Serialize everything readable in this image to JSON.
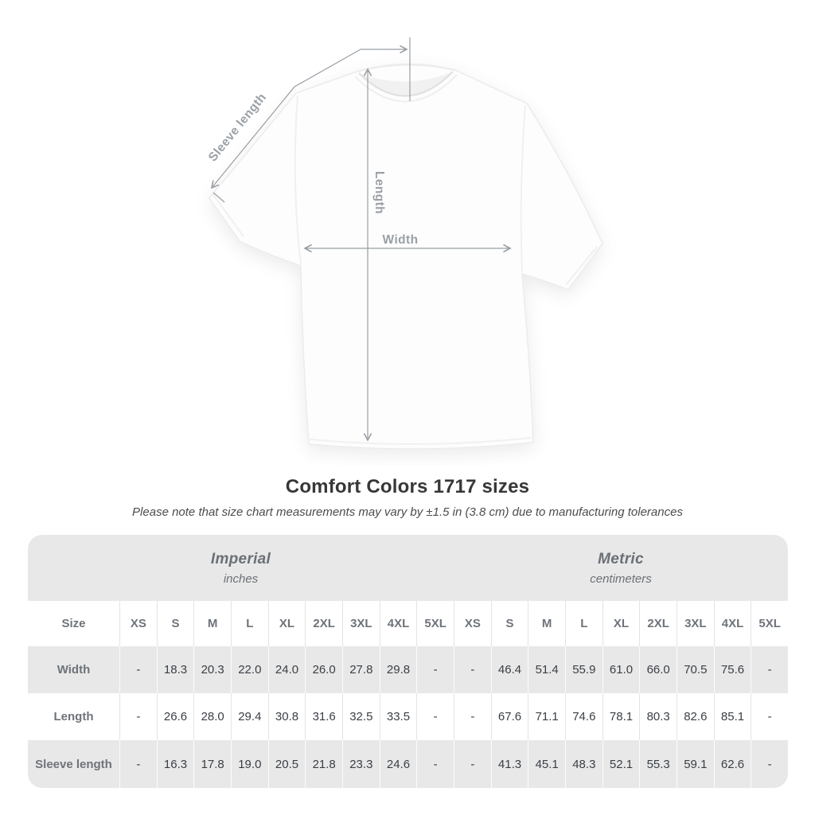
{
  "diagram": {
    "sleeve_label": "Sleeve length",
    "length_label": "Length",
    "width_label": "Width"
  },
  "heading": {
    "title": "Comfort Colors 1717 sizes",
    "note": "Please note that size chart measurements may vary by ±1.5 in (3.8 cm) due to manufacturing tolerances"
  },
  "table": {
    "size_header": "Size",
    "unit_groups": [
      {
        "name": "Imperial",
        "unit": "inches"
      },
      {
        "name": "Metric",
        "unit": "centimeters"
      }
    ],
    "sizes": [
      "XS",
      "S",
      "M",
      "L",
      "XL",
      "2XL",
      "3XL",
      "4XL",
      "5XL"
    ],
    "rows": [
      {
        "label": "Width",
        "imperial": [
          "-",
          "18.3",
          "20.3",
          "22.0",
          "24.0",
          "26.0",
          "27.8",
          "29.8",
          "-"
        ],
        "metric": [
          "-",
          "46.4",
          "51.4",
          "55.9",
          "61.0",
          "66.0",
          "70.5",
          "75.6",
          "-"
        ]
      },
      {
        "label": "Length",
        "imperial": [
          "-",
          "26.6",
          "28.0",
          "29.4",
          "30.8",
          "31.6",
          "32.5",
          "33.5",
          "-"
        ],
        "metric": [
          "-",
          "67.6",
          "71.1",
          "74.6",
          "78.1",
          "80.3",
          "82.6",
          "85.1",
          "-"
        ]
      },
      {
        "label": "Sleeve length",
        "imperial": [
          "-",
          "16.3",
          "17.8",
          "19.0",
          "20.5",
          "21.8",
          "23.3",
          "24.6",
          "-"
        ],
        "metric": [
          "-",
          "41.3",
          "45.1",
          "48.3",
          "52.1",
          "55.3",
          "59.1",
          "62.6",
          "-"
        ]
      }
    ]
  },
  "colors": {
    "stripe": "#e8e8e8",
    "annotation": "#9aa0a6",
    "header_text": "#6e737a",
    "value_text": "#3a3f45",
    "title_text": "#373737"
  },
  "chart_data": {
    "type": "table",
    "title": "Comfort Colors 1717 sizes",
    "note": "Please note that size chart measurements may vary by ±1.5 in (3.8 cm) due to manufacturing tolerances",
    "column_groups": [
      "Imperial (inches)",
      "Metric (centimeters)"
    ],
    "columns": [
      "Size",
      "XS",
      "S",
      "M",
      "L",
      "XL",
      "2XL",
      "3XL",
      "4XL",
      "5XL",
      "XS",
      "S",
      "M",
      "L",
      "XL",
      "2XL",
      "3XL",
      "4XL",
      "5XL"
    ],
    "rows": [
      [
        "Width",
        "-",
        18.3,
        20.3,
        22.0,
        24.0,
        26.0,
        27.8,
        29.8,
        "-",
        "-",
        46.4,
        51.4,
        55.9,
        61.0,
        66.0,
        70.5,
        75.6,
        "-"
      ],
      [
        "Length",
        "-",
        26.6,
        28.0,
        29.4,
        30.8,
        31.6,
        32.5,
        33.5,
        "-",
        "-",
        67.6,
        71.1,
        74.6,
        78.1,
        80.3,
        82.6,
        85.1,
        "-"
      ],
      [
        "Sleeve length",
        "-",
        16.3,
        17.8,
        19.0,
        20.5,
        21.8,
        23.3,
        24.6,
        "-",
        "-",
        41.3,
        45.1,
        48.3,
        52.1,
        55.3,
        59.1,
        62.6,
        "-"
      ]
    ]
  }
}
